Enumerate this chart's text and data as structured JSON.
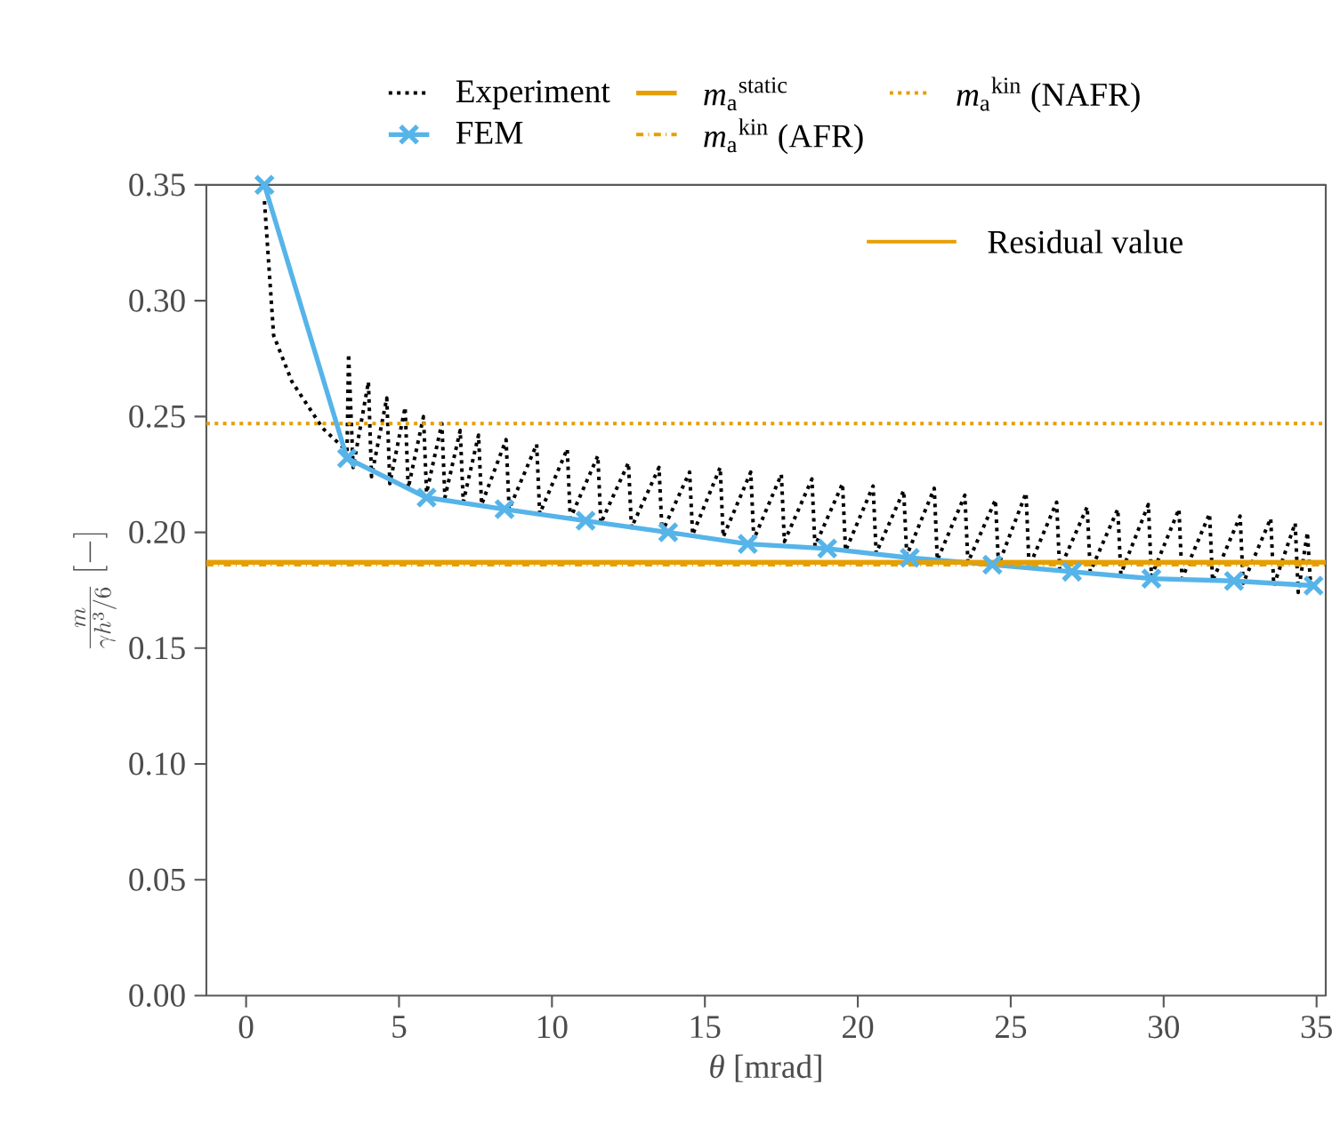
{
  "chart_data": {
    "type": "line",
    "xlabel": "*θ* [mrad]",
    "ylabel": "\\frac{m}{\\gamma h^{3}/6}\\;[\\mathrm{-}]",
    "xlim": [
      -1.3,
      35.3
    ],
    "ylim": [
      0,
      0.35
    ],
    "xticks": [
      0,
      5,
      10,
      15,
      20,
      25,
      30,
      35
    ],
    "yticks": [
      {
        "value": 0,
        "label": "0.00"
      },
      {
        "value": 0.05,
        "label": "0.05"
      },
      {
        "value": 0.1,
        "label": "0.10"
      },
      {
        "value": 0.15,
        "label": "0.15"
      },
      {
        "value": 0.2,
        "label": "0.20"
      },
      {
        "value": 0.25,
        "label": "0.25"
      },
      {
        "value": 0.3,
        "label": "0.30"
      },
      {
        "value": 0.35,
        "label": "0.35"
      }
    ],
    "legend": "top",
    "grid": false,
    "series": [
      {
        "name": "Experiment",
        "color": "#000000",
        "line_style": "dotted",
        "marker": "none",
        "x": [
          0.6,
          0.9,
          1.5,
          2.5,
          3.3,
          3.35,
          3.5,
          4.0,
          4.1,
          4.6,
          4.7,
          5.2,
          5.3,
          5.8,
          5.9,
          6.4,
          6.5,
          7.0,
          7.1,
          7.6,
          7.7,
          8.5,
          8.6,
          9.5,
          9.6,
          10.5,
          10.6,
          11.5,
          11.6,
          12.5,
          12.6,
          13.5,
          13.6,
          14.5,
          14.6,
          15.5,
          15.6,
          16.5,
          16.6,
          17.5,
          17.6,
          18.5,
          18.6,
          19.5,
          19.6,
          20.5,
          20.6,
          21.5,
          21.6,
          22.5,
          22.6,
          23.5,
          23.6,
          24.5,
          24.6,
          25.5,
          25.6,
          26.5,
          26.6,
          27.5,
          27.6,
          28.5,
          28.6,
          29.5,
          29.6,
          30.5,
          30.6,
          31.5,
          31.6,
          32.5,
          32.6,
          33.5,
          33.6,
          34.3,
          34.4,
          34.7,
          34.8
        ],
        "values": [
          0.343,
          0.285,
          0.265,
          0.245,
          0.235,
          0.277,
          0.228,
          0.265,
          0.224,
          0.258,
          0.221,
          0.254,
          0.219,
          0.25,
          0.217,
          0.247,
          0.215,
          0.244,
          0.213,
          0.242,
          0.212,
          0.24,
          0.21,
          0.238,
          0.208,
          0.236,
          0.206,
          0.233,
          0.204,
          0.23,
          0.202,
          0.228,
          0.2,
          0.226,
          0.199,
          0.228,
          0.198,
          0.226,
          0.197,
          0.225,
          0.196,
          0.223,
          0.194,
          0.221,
          0.192,
          0.22,
          0.191,
          0.218,
          0.19,
          0.219,
          0.188,
          0.216,
          0.187,
          0.214,
          0.186,
          0.217,
          0.185,
          0.213,
          0.184,
          0.211,
          0.183,
          0.21,
          0.182,
          0.212,
          0.181,
          0.21,
          0.18,
          0.208,
          0.179,
          0.207,
          0.178,
          0.206,
          0.177,
          0.204,
          0.174,
          0.2,
          0.178
        ]
      },
      {
        "name": "*m*$_{a}$$^{static}$",
        "color": "#e69f00",
        "line_style": "solid",
        "marker": "none",
        "x": [
          -1.3,
          35.3
        ],
        "values": [
          0.187,
          0.187
        ]
      },
      {
        "name": "*m*$_{a}$$^{kin}$ (NAFR)",
        "color": "#e69f00",
        "line_style": "dotted",
        "marker": "none",
        "x": [
          -1.3,
          35.3
        ],
        "values": [
          0.247,
          0.247
        ]
      },
      {
        "name": "FEM",
        "color": "#56b4e9",
        "line_style": "solid",
        "marker": "cross",
        "x": [
          0.6,
          3.3,
          5.9,
          8.45,
          11.1,
          13.8,
          16.4,
          19.0,
          21.7,
          24.4,
          27.0,
          29.6,
          32.3,
          34.9
        ],
        "values": [
          0.35,
          0.232,
          0.215,
          0.21,
          0.205,
          0.2,
          0.195,
          0.193,
          0.189,
          0.186,
          0.183,
          0.18,
          0.179,
          0.177
        ]
      },
      {
        "name": "*m*$_{a}$$^{kin}$ (AFR)",
        "color": "#e69f00",
        "line_style": "dashdot",
        "marker": "none",
        "x": [
          -1.3,
          35.3
        ],
        "values": [
          0.186,
          0.186
        ]
      }
    ],
    "ref_lines": [
      {
        "axis": "y",
        "value": 0.187,
        "label": "Residual value",
        "color": "#e69f00",
        "line_style": "solid"
      }
    ]
  }
}
